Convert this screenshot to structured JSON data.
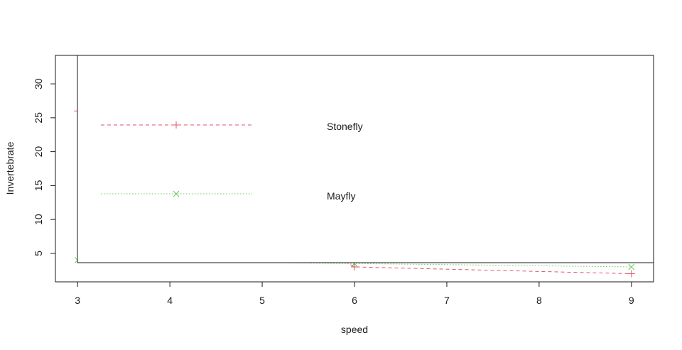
{
  "chart_data": {
    "type": "line",
    "xlabel": "speed",
    "ylabel": "Invertebrate",
    "xlim": [
      2.76,
      9.24
    ],
    "ylim": [
      0.8,
      34.2
    ],
    "x_ticks": [
      3,
      4,
      5,
      6,
      7,
      8,
      9
    ],
    "y_ticks": [
      5,
      10,
      15,
      20,
      25,
      30
    ],
    "series": [
      {
        "name": "Stonefly",
        "color": "#DF536B",
        "line": "dashed",
        "marker": "plus",
        "x": [
          3,
          6,
          9
        ],
        "y": [
          26,
          3,
          2
        ]
      },
      {
        "name": "Mayfly",
        "color": "#61D04F",
        "line": "dotted",
        "marker": "cross",
        "x": [
          3,
          6,
          9
        ],
        "y": [
          4,
          3.5,
          3
        ]
      }
    ],
    "legend": {
      "placement": "top-left",
      "entries": [
        "Stonefly",
        "Mayfly"
      ]
    },
    "grid": false
  }
}
